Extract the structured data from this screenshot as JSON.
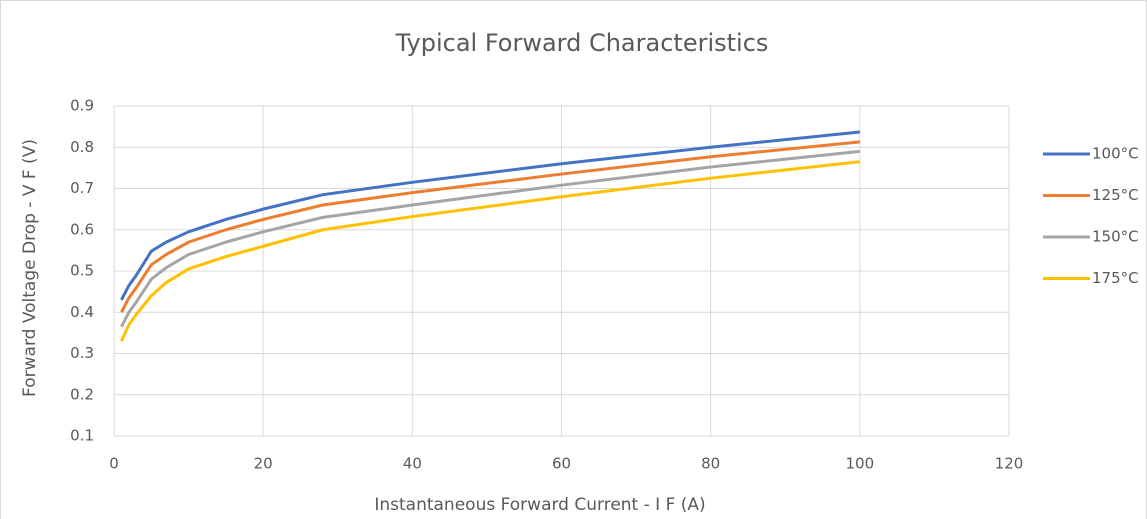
{
  "chart_data": {
    "type": "line",
    "title": "Typical Forward Characteristics",
    "x_label": "Instantaneous Forward Current - I F (A)",
    "y_label": "Forward Voltage Drop - V F (V)",
    "x": [
      1,
      2,
      3,
      5,
      7,
      10,
      15,
      20,
      28,
      40,
      60,
      80,
      100
    ],
    "series": [
      {
        "name": "100°C",
        "color": "#4472c4",
        "values": [
          0.43,
          0.465,
          0.49,
          0.548,
          0.57,
          0.595,
          0.625,
          0.65,
          0.685,
          0.715,
          0.76,
          0.8,
          0.837
        ]
      },
      {
        "name": "125°C",
        "color": "#ed7d31",
        "values": [
          0.4,
          0.435,
          0.46,
          0.515,
          0.54,
          0.57,
          0.6,
          0.625,
          0.66,
          0.69,
          0.735,
          0.777,
          0.813
        ]
      },
      {
        "name": "150°C",
        "color": "#a5a5a5",
        "values": [
          0.365,
          0.4,
          0.425,
          0.48,
          0.508,
          0.54,
          0.57,
          0.595,
          0.63,
          0.66,
          0.708,
          0.752,
          0.79
        ]
      },
      {
        "name": "175°C",
        "color": "#ffc000",
        "values": [
          0.33,
          0.37,
          0.395,
          0.44,
          0.472,
          0.505,
          0.535,
          0.56,
          0.6,
          0.632,
          0.68,
          0.725,
          0.765
        ]
      }
    ],
    "xlim": [
      0,
      120
    ],
    "xticks": [
      0,
      20,
      40,
      60,
      80,
      100,
      120
    ],
    "ylim": [
      0.1,
      0.9
    ],
    "yticks": [
      0.1,
      0.2,
      0.3,
      0.4,
      0.5,
      0.6,
      0.7,
      0.8,
      0.9
    ],
    "grid": true,
    "legend": "right"
  }
}
